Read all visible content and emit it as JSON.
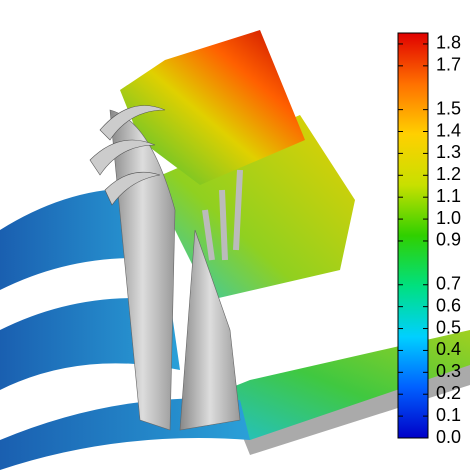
{
  "chart_data": {
    "type": "colorbar",
    "colormap": [
      "#0000c8",
      "#0060ff",
      "#00d0ff",
      "#00e080",
      "#30d000",
      "#c8e000",
      "#ffd000",
      "#ff7000",
      "#e00000"
    ],
    "ylim": [
      0,
      1.85
    ],
    "yticks": [
      {
        "value": 0,
        "label": "0.0"
      },
      0.1,
      0.2,
      0.3,
      0.4,
      0.5,
      0.6,
      0.7,
      0.9,
      {
        "value": 1,
        "label": "1.0"
      },
      1.1,
      1.2,
      1.3,
      1.4,
      1.5,
      1.7,
      1.8
    ]
  }
}
